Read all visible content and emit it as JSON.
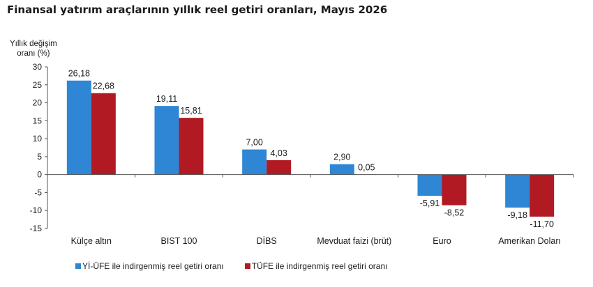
{
  "title": "Finansal yatırım araçlarının yıllık reel getiri oranları, Mayıs 2026",
  "colors": {
    "series1": "#2f86d4",
    "series2": "#b11a23",
    "axis": "#555555",
    "text": "#1a1a1a"
  },
  "chart_data": {
    "type": "bar",
    "title": "Finansal yatırım araçlarının yıllık reel getiri oranları, Mayıs 2026",
    "ylabel_line1": "Yıllık değişim",
    "ylabel_line2": "oranı (%)",
    "ylim": [
      -15,
      30
    ],
    "yticks": [
      30,
      25,
      20,
      15,
      10,
      5,
      0,
      -5,
      -10,
      -15
    ],
    "grid": false,
    "legend_position": "bottom",
    "categories": [
      "Külçe altın",
      "BIST 100",
      "DİBS",
      "Mevduat faizi (brüt)",
      "Euro",
      "Amerikan Doları"
    ],
    "series": [
      {
        "name": "Yİ-ÜFE ile indirgenmiş reel getiri oranı",
        "values": [
          26.18,
          19.11,
          7.0,
          2.9,
          -5.91,
          -9.18
        ],
        "labels": [
          "26,18",
          "19,11",
          "7,00",
          "2,90",
          "-5,91",
          "-9,18"
        ]
      },
      {
        "name": "TÜFE ile indirgenmiş reel getiri oranı",
        "values": [
          22.68,
          15.81,
          4.03,
          0.05,
          -8.52,
          -11.7
        ],
        "labels": [
          "22,68",
          "15,81",
          "4,03",
          "0,05",
          "-8,52",
          "-11,70"
        ]
      }
    ]
  }
}
